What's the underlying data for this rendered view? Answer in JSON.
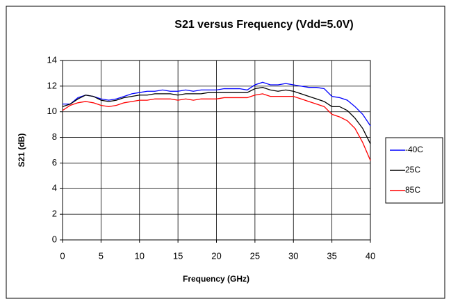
{
  "chart_data": {
    "type": "line",
    "title": "S21 versus Frequency (Vdd=5.0V)",
    "xlabel": "Frequency (GHz)",
    "ylabel": "S21 (dB)",
    "x": [
      0,
      1,
      2,
      3,
      4,
      5,
      6,
      7,
      8,
      9,
      10,
      11,
      12,
      13,
      14,
      15,
      16,
      17,
      18,
      19,
      20,
      21,
      22,
      23,
      24,
      25,
      26,
      27,
      28,
      29,
      30,
      31,
      32,
      33,
      34,
      35,
      36,
      37,
      38,
      39,
      40
    ],
    "series": [
      {
        "name": "-40C",
        "color": "#0000ff",
        "values": [
          10.6,
          10.6,
          11.1,
          11.3,
          11.2,
          11.0,
          10.9,
          11.0,
          11.2,
          11.4,
          11.5,
          11.6,
          11.6,
          11.7,
          11.6,
          11.6,
          11.7,
          11.6,
          11.7,
          11.7,
          11.7,
          11.8,
          11.8,
          11.8,
          11.7,
          12.1,
          12.3,
          12.1,
          12.1,
          12.2,
          12.1,
          12.0,
          11.9,
          11.9,
          11.8,
          11.2,
          11.1,
          10.9,
          10.4,
          9.8,
          8.9
        ]
      },
      {
        "name": "25C",
        "color": "#000000",
        "values": [
          10.4,
          10.6,
          11.0,
          11.3,
          11.2,
          10.9,
          10.8,
          10.9,
          11.1,
          11.2,
          11.3,
          11.3,
          11.4,
          11.4,
          11.4,
          11.3,
          11.4,
          11.4,
          11.4,
          11.5,
          11.5,
          11.5,
          11.5,
          11.5,
          11.5,
          11.8,
          11.9,
          11.7,
          11.6,
          11.7,
          11.6,
          11.4,
          11.2,
          11.0,
          10.8,
          10.4,
          10.4,
          10.1,
          9.5,
          8.7,
          7.5
        ]
      },
      {
        "name": "85C",
        "color": "#ff0000",
        "values": [
          10.1,
          10.5,
          10.7,
          10.8,
          10.7,
          10.5,
          10.4,
          10.5,
          10.7,
          10.8,
          10.9,
          10.9,
          11.0,
          11.0,
          11.0,
          10.9,
          11.0,
          10.9,
          11.0,
          11.0,
          11.0,
          11.1,
          11.1,
          11.1,
          11.1,
          11.3,
          11.4,
          11.2,
          11.2,
          11.2,
          11.2,
          11.0,
          10.8,
          10.6,
          10.4,
          9.8,
          9.6,
          9.3,
          8.7,
          7.6,
          6.2
        ]
      }
    ],
    "xlim": [
      0,
      40
    ],
    "xticks": [
      0,
      5,
      10,
      15,
      20,
      25,
      30,
      35,
      40
    ],
    "ylim": [
      0,
      14
    ],
    "yticks": [
      0,
      2,
      4,
      6,
      8,
      10,
      12,
      14
    ],
    "grid": true,
    "legend": "right"
  }
}
